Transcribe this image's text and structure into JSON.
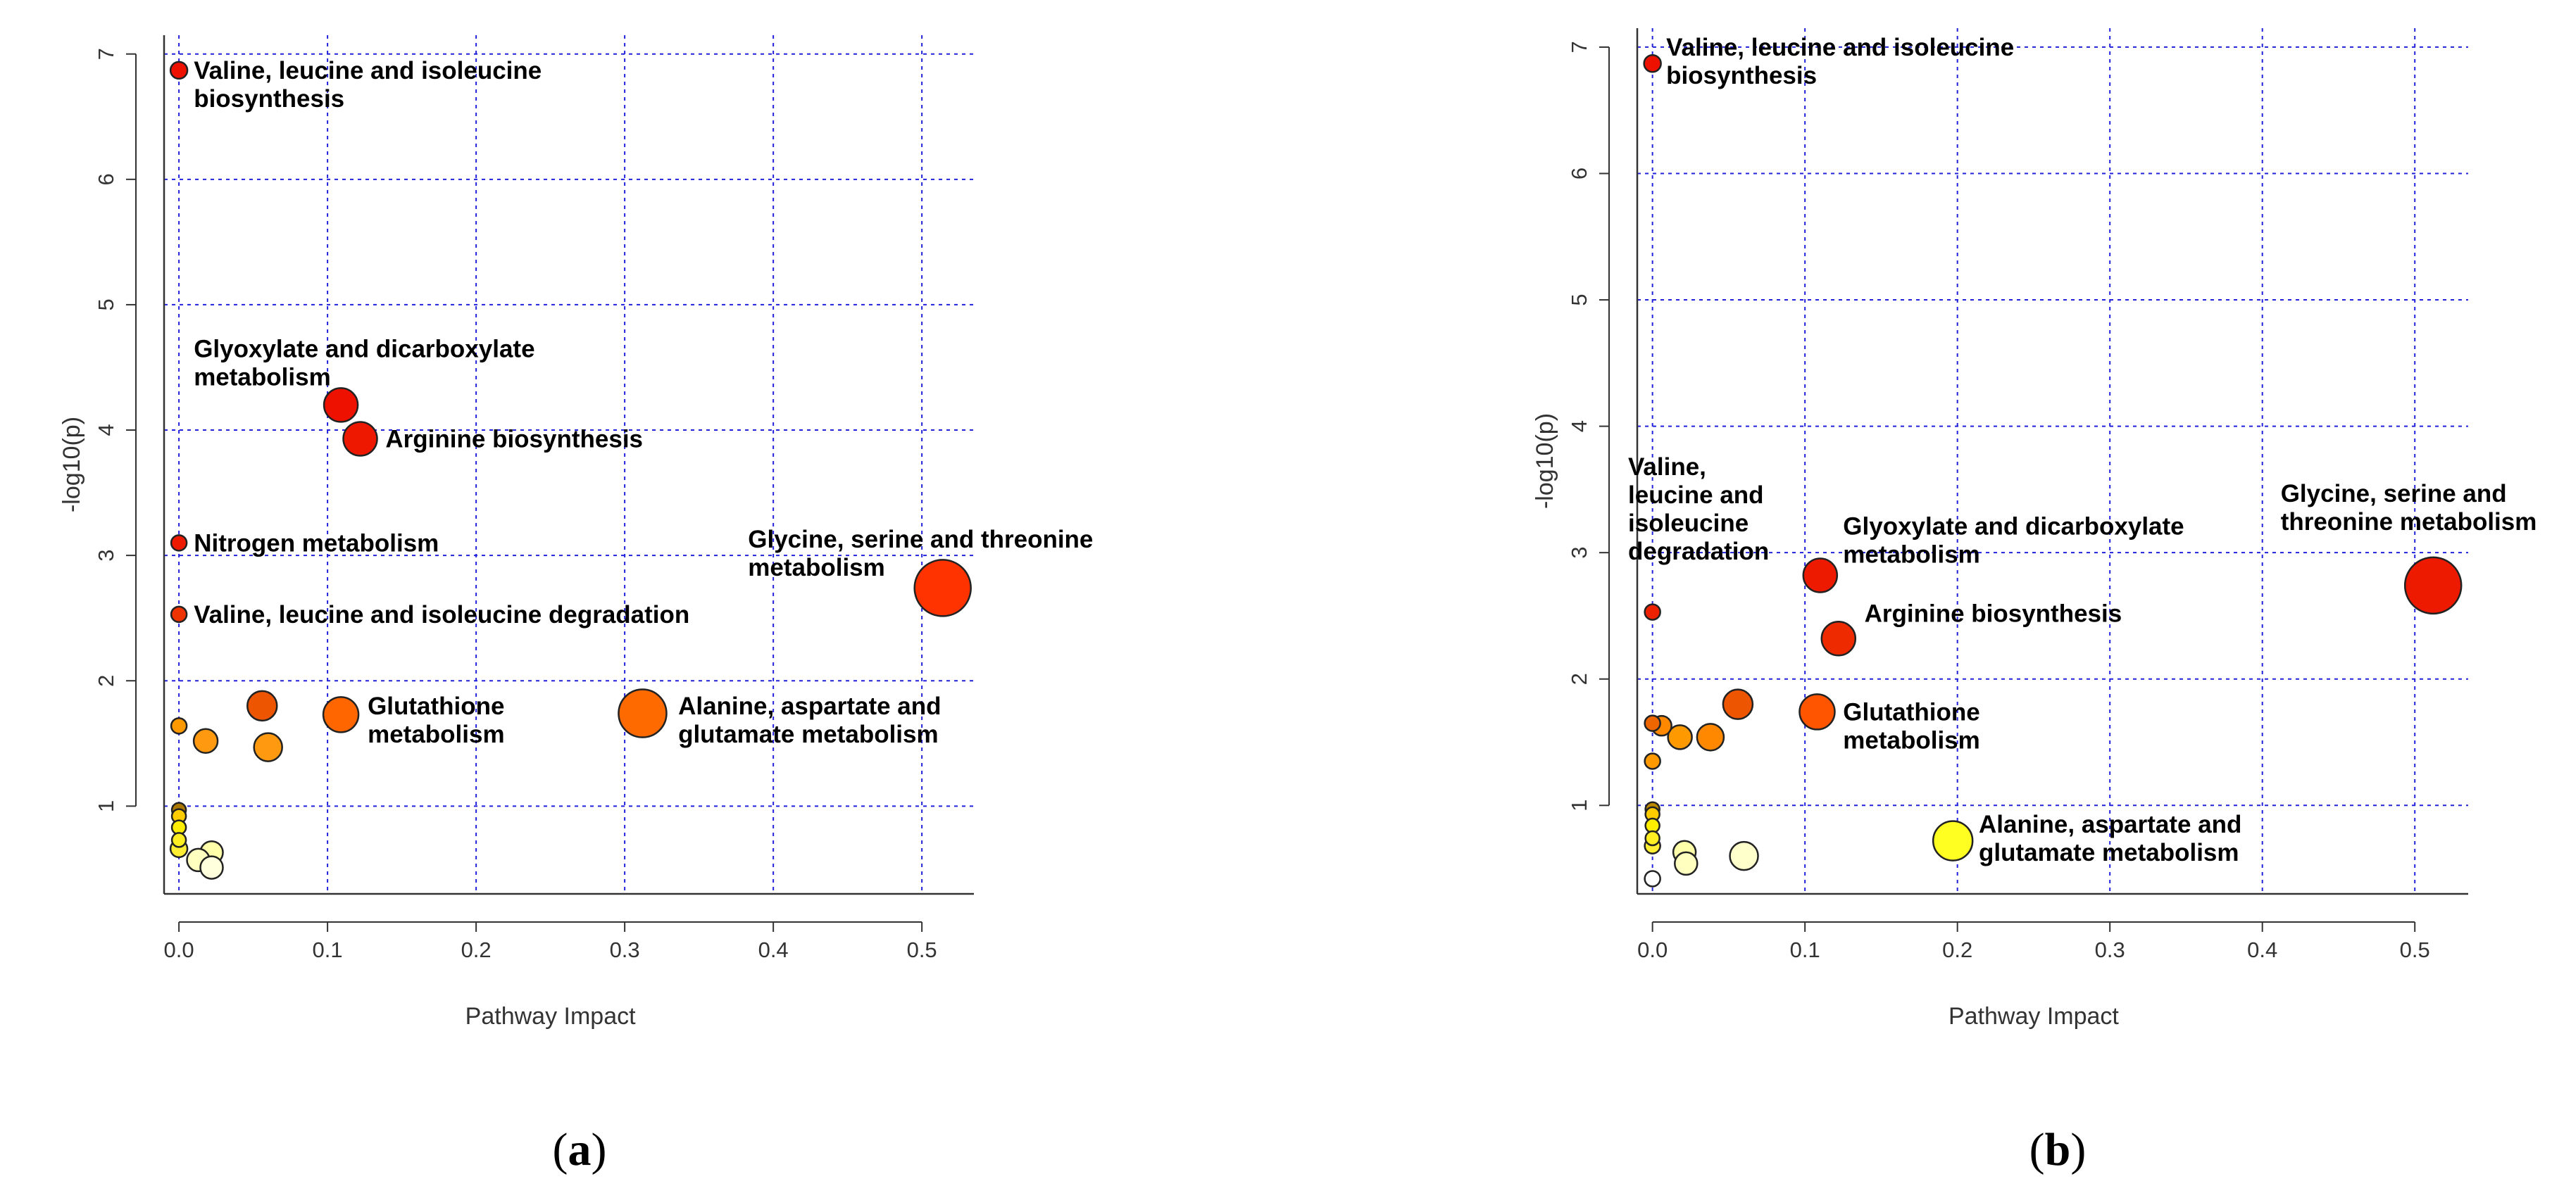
{
  "chart_data": [
    {
      "type": "scatter",
      "panel": "(a)",
      "panel_open": "(",
      "panel_letter": "a",
      "panel_close": ")",
      "xlabel": "Pathway Impact",
      "ylabel": "-log10(p)",
      "xlim": [
        -0.01,
        0.535
      ],
      "ylim": [
        0.3,
        7.15
      ],
      "xticks": [
        0.0,
        0.1,
        0.2,
        0.3,
        0.4,
        0.5
      ],
      "yticks": [
        1,
        2,
        3,
        4,
        5,
        6,
        7
      ],
      "grid": true,
      "points": [
        {
          "x": 0.0,
          "y": 6.87,
          "r": 12,
          "color": "#ee1100"
        },
        {
          "x": 0.109,
          "y": 4.2,
          "r": 24,
          "color": "#ee1100"
        },
        {
          "x": 0.122,
          "y": 3.93,
          "r": 24,
          "color": "#ee1800"
        },
        {
          "x": 0.0,
          "y": 3.1,
          "r": 11,
          "color": "#ee1a00"
        },
        {
          "x": 0.0,
          "y": 2.53,
          "r": 11,
          "color": "#ee3300"
        },
        {
          "x": 0.514,
          "y": 2.74,
          "r": 40,
          "color": "#ff3300"
        },
        {
          "x": 0.056,
          "y": 1.8,
          "r": 21,
          "color": "#ee5500"
        },
        {
          "x": 0.109,
          "y": 1.73,
          "r": 25,
          "color": "#ff6600"
        },
        {
          "x": 0.312,
          "y": 1.74,
          "r": 34,
          "color": "#ff6a00"
        },
        {
          "x": 0.0,
          "y": 1.64,
          "r": 11,
          "color": "#ff9900"
        },
        {
          "x": 0.018,
          "y": 1.52,
          "r": 17,
          "color": "#ff9a10"
        },
        {
          "x": 0.06,
          "y": 1.47,
          "r": 20,
          "color": "#ff9a10"
        },
        {
          "x": 0.0,
          "y": 0.97,
          "r": 10,
          "color": "#aa7700"
        },
        {
          "x": 0.0,
          "y": 0.92,
          "r": 10,
          "color": "#ffcc00"
        },
        {
          "x": 0.0,
          "y": 0.83,
          "r": 10,
          "color": "#ffee00"
        },
        {
          "x": 0.0,
          "y": 0.73,
          "r": 10,
          "color": "#ffee22"
        },
        {
          "x": 0.0,
          "y": 0.66,
          "r": 12,
          "color": "#ffee33"
        },
        {
          "x": 0.022,
          "y": 0.63,
          "r": 16,
          "color": "#ffffaa"
        },
        {
          "x": 0.013,
          "y": 0.57,
          "r": 16,
          "color": "#ffffc0"
        },
        {
          "x": 0.022,
          "y": 0.51,
          "r": 16,
          "color": "#ffffdd"
        }
      ],
      "labels": [
        {
          "lines": [
            "Valine, leucine and isoleucine",
            "biosynthesis"
          ],
          "x": 0.01,
          "y": 6.87
        },
        {
          "lines": [
            "Glyoxylate and dicarboxylate",
            "metabolism"
          ],
          "x": 0.01,
          "y": 4.65
        },
        {
          "lines": [
            "Arginine biosynthesis"
          ],
          "x": 0.139,
          "y": 3.93
        },
        {
          "lines": [
            "Nitrogen metabolism"
          ],
          "x": 0.01,
          "y": 3.1
        },
        {
          "lines": [
            "Valine, leucine and isoleucine degradation"
          ],
          "x": 0.01,
          "y": 2.53
        },
        {
          "lines": [
            "Glycine, serine and threonine",
            "metabolism"
          ],
          "x": 0.383,
          "y": 3.13
        },
        {
          "lines": [
            "Glutathione",
            "metabolism"
          ],
          "x": 0.127,
          "y": 1.8
        },
        {
          "lines": [
            "Alanine, aspartate and",
            "glutamate metabolism"
          ],
          "x": 0.336,
          "y": 1.8
        }
      ]
    },
    {
      "type": "scatter",
      "panel": "(b)",
      "panel_open": "(",
      "panel_letter": "b",
      "panel_close": ")",
      "xlabel": "Pathway Impact",
      "ylabel": "-log10(p)",
      "xlim": [
        -0.01,
        0.535
      ],
      "ylim": [
        0.3,
        7.15
      ],
      "xticks": [
        0.0,
        0.1,
        0.2,
        0.3,
        0.4,
        0.5
      ],
      "yticks": [
        1,
        2,
        3,
        4,
        5,
        6,
        7
      ],
      "grid": true,
      "points": [
        {
          "x": 0.0,
          "y": 6.87,
          "r": 12,
          "color": "#ee1100"
        },
        {
          "x": 0.11,
          "y": 2.82,
          "r": 24,
          "color": "#ee1a00"
        },
        {
          "x": 0.122,
          "y": 2.32,
          "r": 24,
          "color": "#ee2a00"
        },
        {
          "x": 0.0,
          "y": 2.53,
          "r": 11,
          "color": "#ee2200"
        },
        {
          "x": 0.512,
          "y": 2.74,
          "r": 40,
          "color": "#ee1a00"
        },
        {
          "x": 0.056,
          "y": 1.8,
          "r": 21,
          "color": "#ee5500"
        },
        {
          "x": 0.108,
          "y": 1.74,
          "r": 25,
          "color": "#ff5500"
        },
        {
          "x": 0.0,
          "y": 1.65,
          "r": 11,
          "color": "#ee6600"
        },
        {
          "x": 0.006,
          "y": 1.63,
          "r": 14,
          "color": "#ff8800"
        },
        {
          "x": 0.018,
          "y": 1.54,
          "r": 17,
          "color": "#ff9900"
        },
        {
          "x": 0.038,
          "y": 1.54,
          "r": 19,
          "color": "#ff8800"
        },
        {
          "x": 0.0,
          "y": 1.35,
          "r": 11,
          "color": "#ff9900"
        },
        {
          "x": 0.0,
          "y": 0.97,
          "r": 10,
          "color": "#bb8800"
        },
        {
          "x": 0.0,
          "y": 0.93,
          "r": 10,
          "color": "#ffcc00"
        },
        {
          "x": 0.0,
          "y": 0.84,
          "r": 10,
          "color": "#ffee00"
        },
        {
          "x": 0.0,
          "y": 0.74,
          "r": 10,
          "color": "#ffee22"
        },
        {
          "x": 0.0,
          "y": 0.68,
          "r": 11,
          "color": "#ffee33"
        },
        {
          "x": 0.021,
          "y": 0.63,
          "r": 16,
          "color": "#ffffaa"
        },
        {
          "x": 0.022,
          "y": 0.54,
          "r": 16,
          "color": "#ffffc0"
        },
        {
          "x": 0.06,
          "y": 0.6,
          "r": 20,
          "color": "#ffffcc"
        },
        {
          "x": 0.197,
          "y": 0.72,
          "r": 28,
          "color": "#ffff22"
        },
        {
          "x": 0.0,
          "y": 0.42,
          "r": 11,
          "color": "#ffffff"
        }
      ],
      "labels": [
        {
          "lines": [
            "Valine, leucine and isoleucine",
            "biosynthesis"
          ],
          "x": 0.009,
          "y": 7.0
        },
        {
          "lines": [
            "Valine,",
            "leucine and",
            "isoleucine",
            "degradation"
          ],
          "x": -0.016,
          "y": 3.68
        },
        {
          "lines": [
            "Glyoxylate and dicarboxylate",
            "metabolism"
          ],
          "x": 0.125,
          "y": 3.21
        },
        {
          "lines": [
            "Arginine biosynthesis"
          ],
          "x": 0.139,
          "y": 2.52
        },
        {
          "lines": [
            "Glycine, serine and",
            "threonine metabolism"
          ],
          "x": 0.412,
          "y": 3.47
        },
        {
          "lines": [
            "Glutathione",
            "metabolism"
          ],
          "x": 0.125,
          "y": 1.74
        },
        {
          "lines": [
            "Alanine, aspartate and",
            "glutamate metabolism"
          ],
          "x": 0.214,
          "y": 0.85
        }
      ]
    }
  ]
}
